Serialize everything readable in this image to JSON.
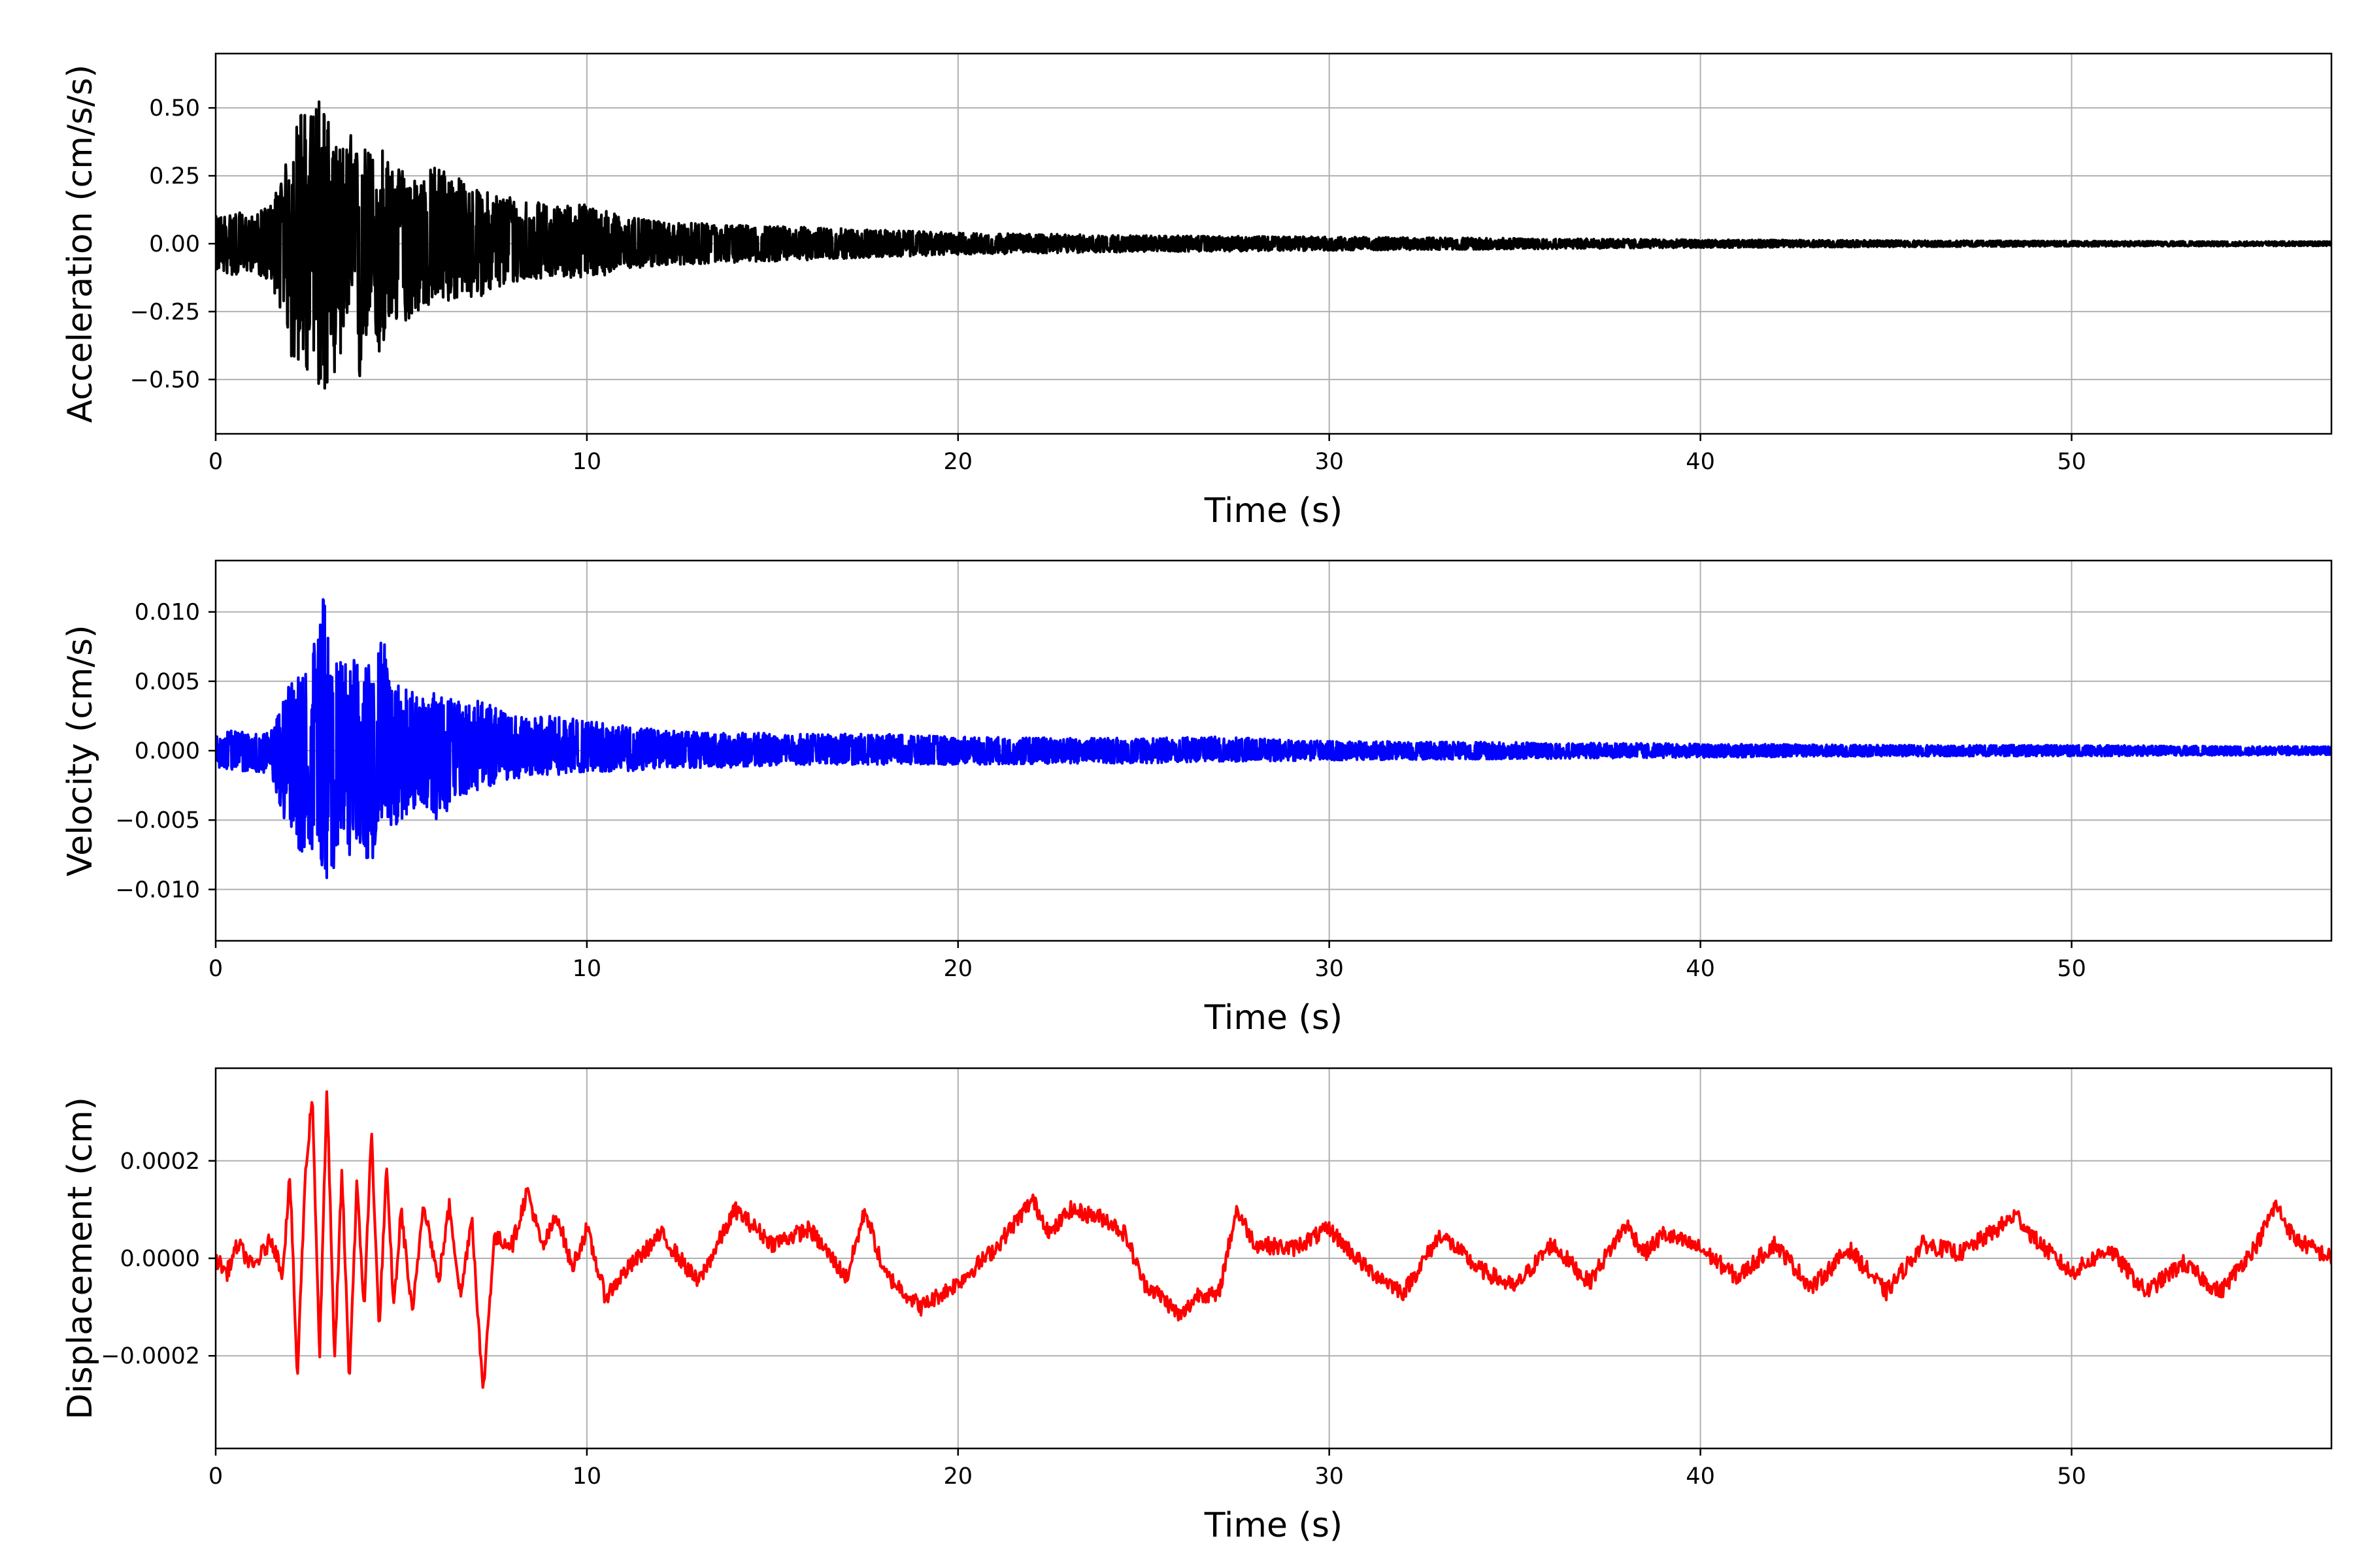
{
  "chart_data": [
    {
      "type": "line",
      "xlabel": "Time (s)",
      "ylabel": "Acceleration (cm/s/s)",
      "xlim": [
        0,
        57
      ],
      "ylim": [
        -0.7,
        0.7
      ],
      "x_ticks": [
        0,
        10,
        20,
        30,
        40,
        50
      ],
      "y_ticks": [
        -0.5,
        -0.25,
        0,
        0.25,
        0.5
      ],
      "x_tick_labels": [
        "0",
        "10",
        "20",
        "30",
        "40",
        "50"
      ],
      "y_tick_labels": [
        "−0.50",
        "−0.25",
        "0.00",
        "0.25",
        "0.50"
      ],
      "grid": true,
      "series": [
        {
          "color": "#000000",
          "x": [
            0,
            0.5,
            1,
            1.5,
            1.9,
            2.1,
            2.3,
            2.5,
            2.7,
            2.9,
            3.1,
            3.3,
            3.5,
            3.7,
            3.9,
            4.1,
            4.3,
            4.5,
            4.7,
            5,
            5.5,
            6,
            7,
            8,
            9,
            10,
            11,
            12,
            14,
            16,
            18,
            20,
            25,
            30,
            35,
            40,
            45,
            50,
            57
          ],
          "y_upper": [
            0.1,
            0.12,
            0.1,
            0.15,
            0.3,
            0.4,
            0.52,
            0.45,
            0.58,
            0.55,
            0.4,
            0.35,
            0.38,
            0.42,
            0.3,
            0.4,
            0.3,
            0.37,
            0.28,
            0.28,
            0.25,
            0.3,
            0.2,
            0.18,
            0.14,
            0.15,
            0.1,
            0.08,
            0.07,
            0.06,
            0.05,
            0.04,
            0.03,
            0.025,
            0.02,
            0.015,
            0.012,
            0.01,
            0.008
          ],
          "y_lower": [
            -0.1,
            -0.12,
            -0.1,
            -0.15,
            -0.3,
            -0.5,
            -0.4,
            -0.55,
            -0.45,
            -0.65,
            -0.45,
            -0.5,
            -0.3,
            -0.5,
            -0.55,
            -0.3,
            -0.4,
            -0.45,
            -0.3,
            -0.3,
            -0.25,
            -0.22,
            -0.2,
            -0.15,
            -0.12,
            -0.13,
            -0.1,
            -0.08,
            -0.07,
            -0.06,
            -0.05,
            -0.04,
            -0.03,
            -0.025,
            -0.02,
            -0.015,
            -0.012,
            -0.01,
            -0.008
          ]
        }
      ]
    },
    {
      "type": "line",
      "xlabel": "Time (s)",
      "ylabel": "Velocity (cm/s)",
      "xlim": [
        0,
        57
      ],
      "ylim": [
        -0.0137,
        0.0137
      ],
      "x_ticks": [
        0,
        10,
        20,
        30,
        40,
        50
      ],
      "y_ticks": [
        -0.01,
        -0.005,
        0,
        0.005,
        0.01
      ],
      "x_tick_labels": [
        "0",
        "10",
        "20",
        "30",
        "40",
        "50"
      ],
      "y_tick_labels": [
        "−0.010",
        "−0.005",
        "0.000",
        "0.005",
        "0.010"
      ],
      "grid": true,
      "series": [
        {
          "color": "#0000ff",
          "x": [
            0,
            0.5,
            1,
            1.5,
            1.9,
            2.1,
            2.3,
            2.5,
            2.7,
            2.9,
            3.1,
            3.3,
            3.5,
            3.7,
            3.9,
            4.1,
            4.3,
            4.5,
            4.7,
            5,
            5.5,
            6,
            6.5,
            7,
            8,
            9,
            10,
            11,
            12,
            14,
            16,
            18,
            20,
            25,
            27,
            30,
            35,
            40,
            45,
            50,
            57
          ],
          "y_upper": [
            0.0012,
            0.0015,
            0.0012,
            0.0015,
            0.0045,
            0.005,
            0.006,
            0.0055,
            0.009,
            0.0125,
            0.006,
            0.0065,
            0.007,
            0.0085,
            0.0055,
            0.0065,
            0.006,
            0.0088,
            0.005,
            0.005,
            0.004,
            0.0045,
            0.0035,
            0.0038,
            0.0025,
            0.0025,
            0.0022,
            0.0018,
            0.0015,
            0.0013,
            0.0012,
            0.0012,
            0.001,
            0.0009,
            0.001,
            0.0007,
            0.0006,
            0.0005,
            0.0004,
            0.0004,
            0.0003
          ],
          "y_lower": [
            -0.0012,
            -0.0015,
            -0.0015,
            -0.002,
            -0.0055,
            -0.0065,
            -0.0075,
            -0.0065,
            -0.008,
            -0.0085,
            -0.011,
            -0.007,
            -0.0065,
            -0.0085,
            -0.0075,
            -0.0085,
            -0.0088,
            -0.005,
            -0.006,
            -0.005,
            -0.004,
            -0.0052,
            -0.0035,
            -0.003,
            -0.002,
            -0.0018,
            -0.0015,
            -0.0015,
            -0.0013,
            -0.0012,
            -0.001,
            -0.001,
            -0.001,
            -0.0009,
            -0.0008,
            -0.0007,
            -0.0006,
            -0.0005,
            -0.0004,
            -0.0004,
            -0.0003
          ]
        }
      ]
    },
    {
      "type": "line",
      "xlabel": "Time (s)",
      "ylabel": "Displacement (cm)",
      "xlim": [
        0,
        57
      ],
      "ylim": [
        -0.00039,
        0.00039
      ],
      "x_ticks": [
        0,
        10,
        20,
        30,
        40,
        50
      ],
      "y_ticks": [
        -0.0002,
        0,
        0.0002
      ],
      "x_tick_labels": [
        "0",
        "10",
        "20",
        "30",
        "40",
        "50"
      ],
      "y_tick_labels": [
        "−0.0002",
        "0.0000",
        "0.0002"
      ],
      "grid": true,
      "series": [
        {
          "color": "#ff0000",
          "x": [
            0,
            0.3,
            0.6,
            1,
            1.5,
            1.8,
            2,
            2.2,
            2.4,
            2.6,
            2.8,
            3,
            3.2,
            3.4,
            3.6,
            3.8,
            4,
            4.2,
            4.4,
            4.6,
            4.8,
            5,
            5.3,
            5.6,
            6,
            6.3,
            6.6,
            6.9,
            7.2,
            7.5,
            8,
            8.4,
            8.8,
            9.2,
            9.6,
            10,
            10.5,
            11,
            12,
            13,
            14,
            15,
            16,
            17,
            17.5,
            18,
            19,
            20,
            21,
            22,
            22.5,
            23,
            24,
            24.5,
            25,
            25.5,
            26,
            26.5,
            27,
            27.5,
            28,
            29,
            30,
            31,
            32,
            33,
            34,
            35,
            36,
            37,
            38,
            38.5,
            39,
            40,
            41,
            42,
            43,
            44,
            45,
            46,
            47,
            48,
            48.5,
            49,
            50,
            51,
            52,
            53,
            54,
            55,
            55.5,
            56,
            57
          ],
          "y": [
            0,
            -3e-05,
            3e-05,
            -2e-05,
            4e-05,
            -3e-05,
            0.00017,
            -0.00025,
            0.00015,
            0.00034,
            -0.0002,
            0.00035,
            -0.00022,
            0.00018,
            -0.00025,
            0.00015,
            -0.0001,
            0.00026,
            -0.00015,
            0.00018,
            -0.0001,
            0.0001,
            -0.00012,
            0.00012,
            -5e-05,
            0.00011,
            -8e-05,
            9e-05,
            -0.00028,
            4e-05,
            3e-05,
            0.00014,
            2e-05,
            9e-05,
            -2e-05,
            6e-05,
            -8e-05,
            -3e-05,
            5e-05,
            -5e-05,
            0.0001,
            3e-05,
            6e-05,
            -4e-05,
            0.0001,
            -3e-05,
            -0.0001,
            -5e-05,
            2e-05,
            0.00012,
            5e-05,
            0.0001,
            8e-05,
            5e-05,
            -5e-05,
            -8e-05,
            -0.00012,
            -7e-05,
            -8e-05,
            0.0001,
            3e-05,
            2e-05,
            6e-05,
            -2e-05,
            -7e-05,
            5e-05,
            -2e-05,
            -6e-05,
            3e-05,
            -5e-05,
            7e-05,
            1e-05,
            5e-05,
            2e-05,
            -4e-05,
            3e-05,
            -6e-05,
            2e-05,
            -7e-05,
            3e-05,
            1e-05,
            6e-05,
            9e-05,
            4e-05,
            -3e-05,
            2e-05,
            -7e-05,
            -1e-05,
            -7e-05,
            3e-05,
            0.00011,
            4e-05,
            0
          ]
        }
      ]
    }
  ]
}
